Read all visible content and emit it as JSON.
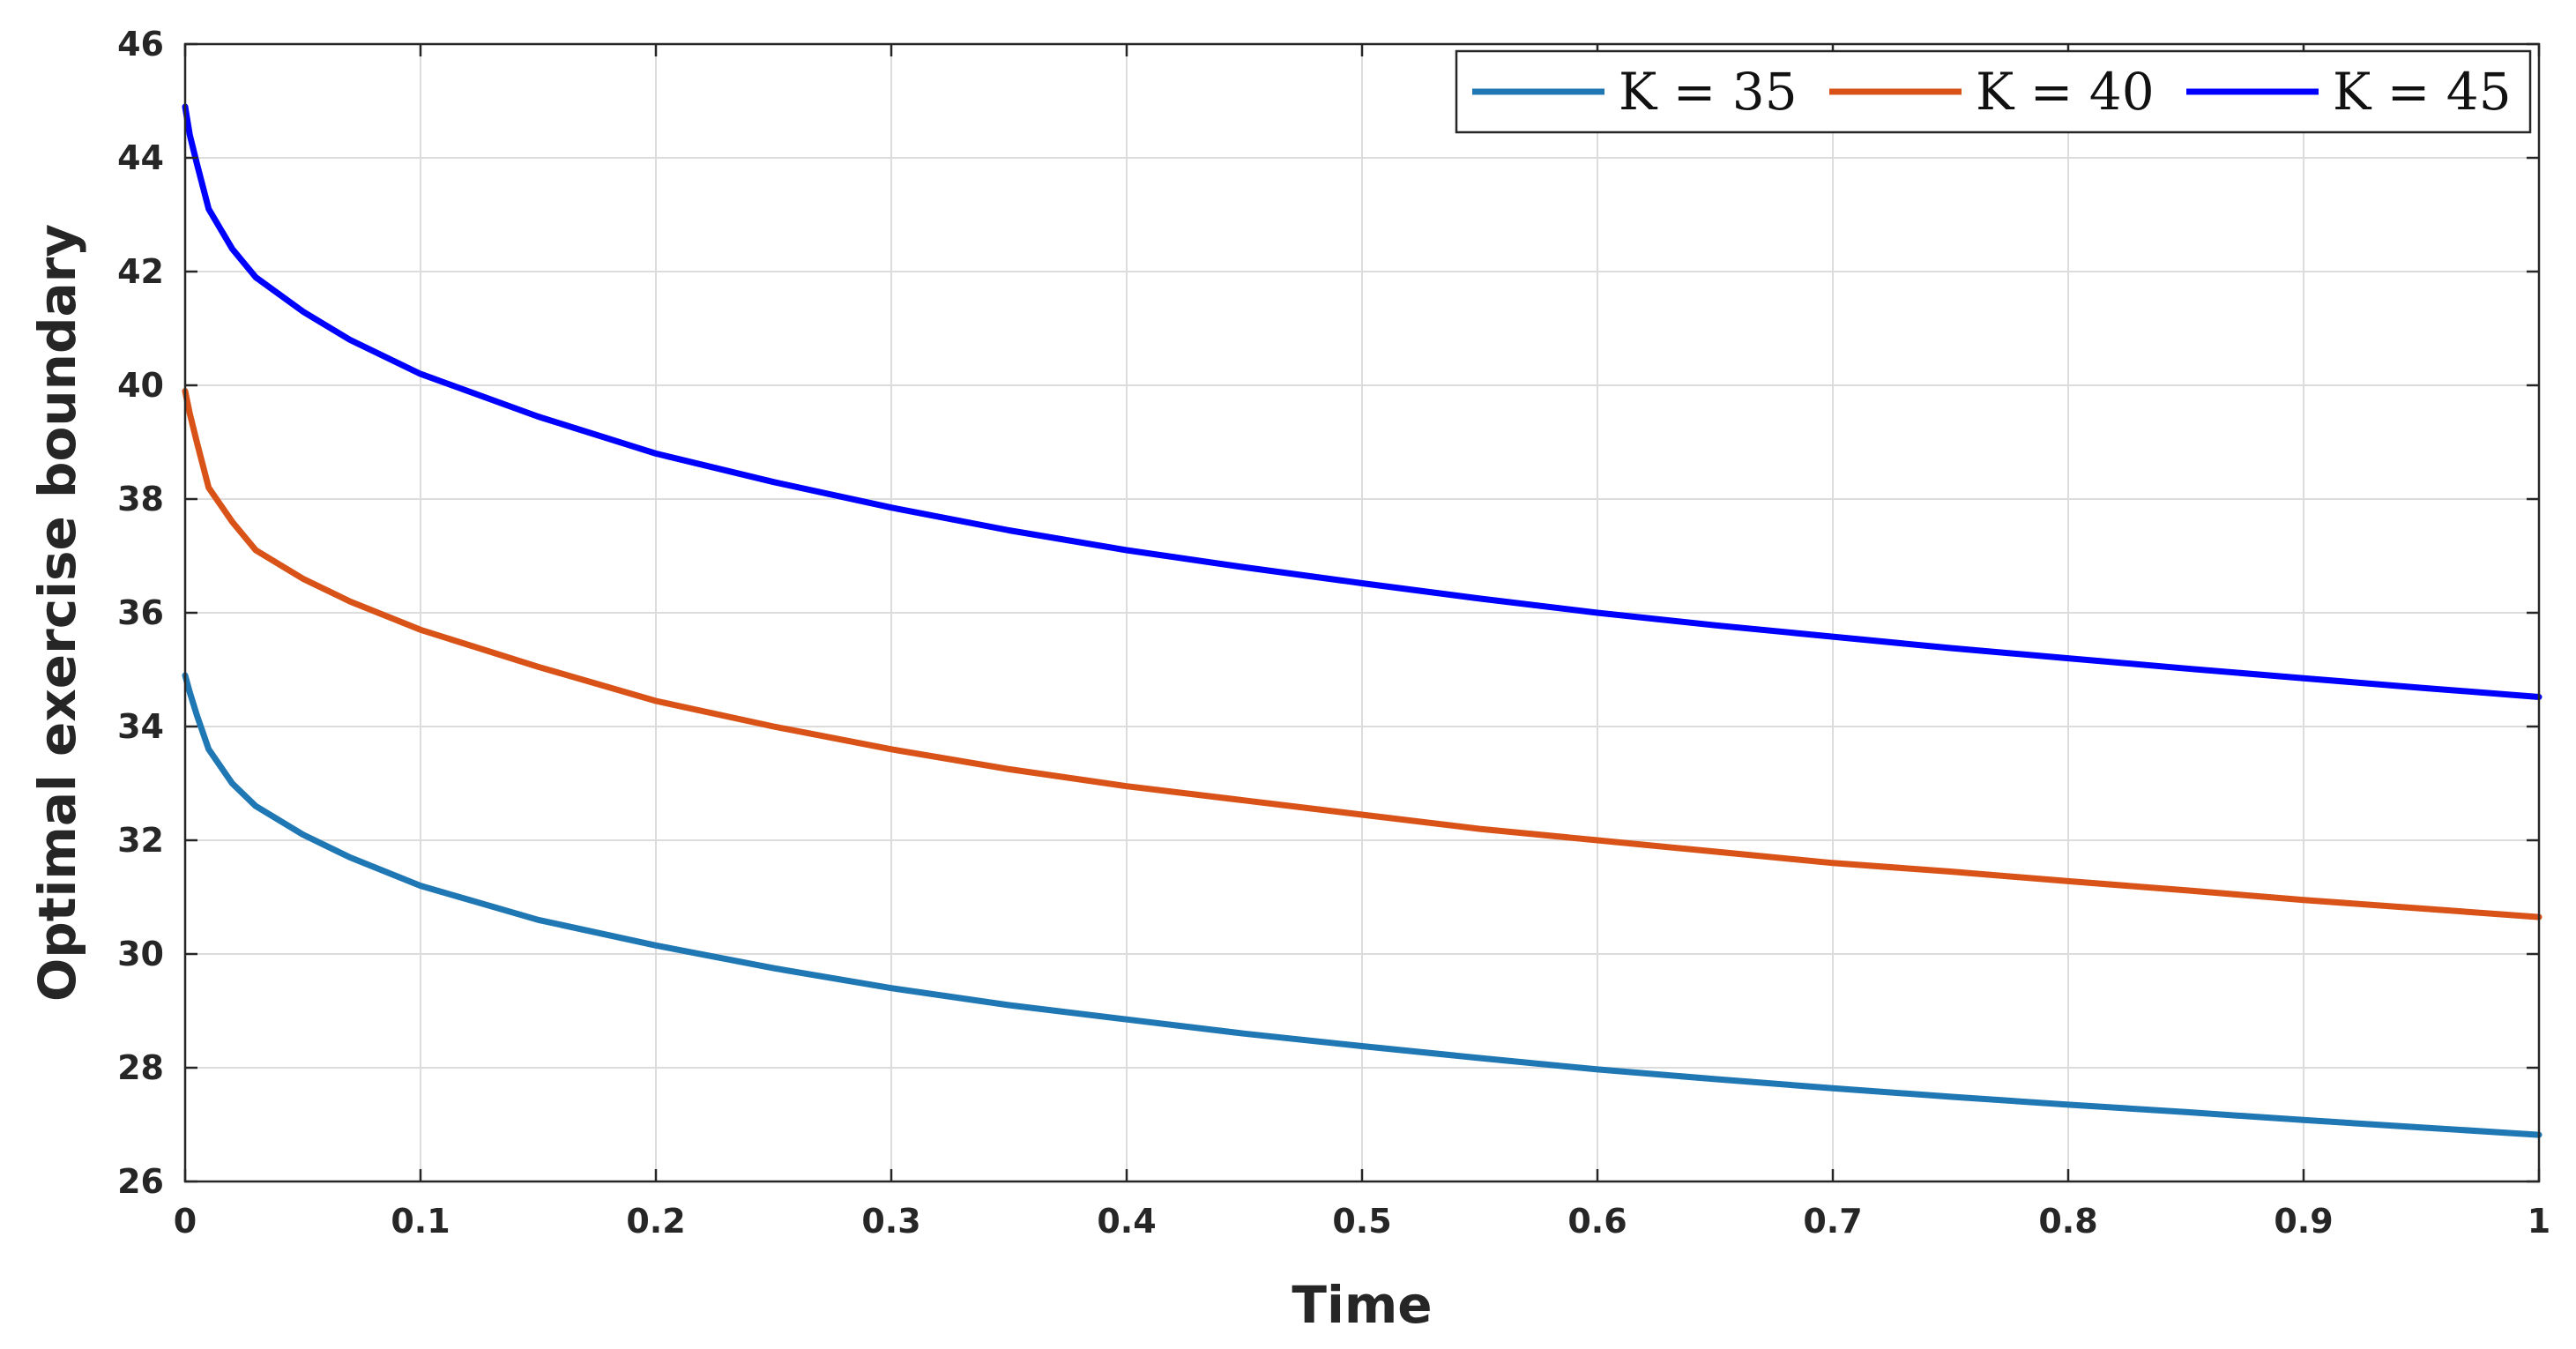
{
  "chart_data": {
    "type": "line",
    "title": "",
    "xlabel": "Time",
    "ylabel": "Optimal exercise boundary",
    "xlim": [
      0,
      1
    ],
    "ylim": [
      26,
      46
    ],
    "xticks": [
      0,
      0.1,
      0.2,
      0.3,
      0.4,
      0.5,
      0.6,
      0.7,
      0.8,
      0.9,
      1
    ],
    "xtick_labels": [
      "0",
      "0.1",
      "0.2",
      "0.3",
      "0.4",
      "0.5",
      "0.6",
      "0.7",
      "0.8",
      "0.9",
      "1"
    ],
    "yticks": [
      26,
      28,
      30,
      32,
      34,
      36,
      38,
      40,
      42,
      44,
      46
    ],
    "ytick_labels": [
      "26",
      "28",
      "30",
      "32",
      "34",
      "36",
      "38",
      "40",
      "42",
      "44",
      "46"
    ],
    "grid": true,
    "legend_position": "top-right",
    "x": [
      0,
      0.002,
      0.005,
      0.01,
      0.02,
      0.03,
      0.05,
      0.07,
      0.1,
      0.15,
      0.2,
      0.25,
      0.3,
      0.35,
      0.4,
      0.45,
      0.5,
      0.55,
      0.6,
      0.65,
      0.7,
      0.75,
      0.8,
      0.85,
      0.9,
      0.95,
      1.0
    ],
    "series": [
      {
        "name": "K = 35",
        "k_value": "35",
        "color": "#1f77b4",
        "values": [
          34.9,
          34.6,
          34.2,
          33.6,
          33.0,
          32.6,
          32.1,
          31.7,
          31.2,
          30.6,
          30.15,
          29.75,
          29.4,
          29.1,
          28.85,
          28.6,
          28.38,
          28.17,
          27.97,
          27.8,
          27.64,
          27.49,
          27.35,
          27.22,
          27.08,
          26.95,
          26.82
        ]
      },
      {
        "name": "K = 40",
        "k_value": "40",
        "color": "#d95319",
        "values": [
          39.9,
          39.5,
          39.0,
          38.2,
          37.6,
          37.1,
          36.6,
          36.2,
          35.7,
          35.05,
          34.45,
          34.0,
          33.6,
          33.25,
          32.95,
          32.7,
          32.45,
          32.2,
          32.0,
          31.8,
          31.6,
          31.45,
          31.28,
          31.12,
          30.95,
          30.8,
          30.65
        ]
      },
      {
        "name": "K = 45",
        "k_value": "45",
        "color": "#0000ff",
        "values": [
          44.9,
          44.4,
          43.9,
          43.1,
          42.4,
          41.9,
          41.3,
          40.8,
          40.2,
          39.45,
          38.8,
          38.3,
          37.85,
          37.45,
          37.1,
          36.8,
          36.52,
          36.25,
          36.0,
          35.78,
          35.58,
          35.38,
          35.2,
          35.02,
          34.85,
          34.68,
          34.52
        ]
      }
    ]
  }
}
